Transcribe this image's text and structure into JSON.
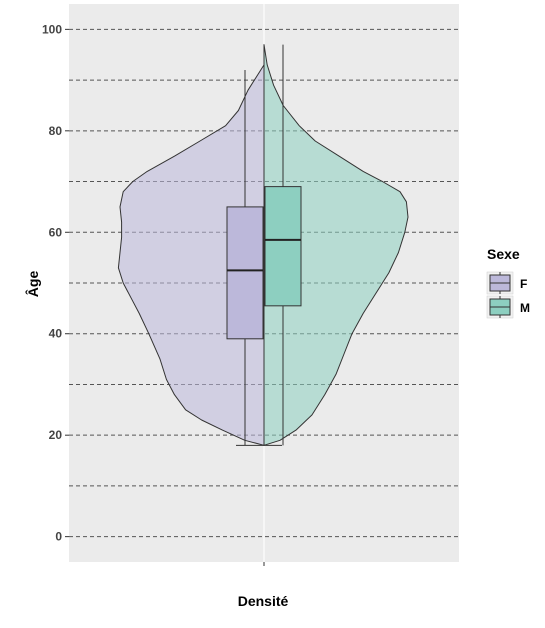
{
  "chart_data": {
    "type": "violin",
    "xlabel": "Densité",
    "ylabel": "Âge",
    "ylim": [
      -5,
      105
    ],
    "y_ticks": [
      0,
      20,
      40,
      60,
      80,
      100
    ],
    "y_minor_ticks": [
      10,
      30,
      50,
      70,
      90
    ],
    "grid": "horizontal dashed",
    "legend": {
      "title": "Sexe",
      "placement": "right"
    },
    "series": [
      {
        "name": "F",
        "side": "left",
        "color": "#bcb8da",
        "box": {
          "min": 18,
          "q1": 39,
          "median": 52.5,
          "q3": 65,
          "max": 92
        },
        "density": [
          [
            18,
            0.0
          ],
          [
            19,
            0.12
          ],
          [
            21,
            0.26
          ],
          [
            23,
            0.39
          ],
          [
            25,
            0.49
          ],
          [
            28,
            0.56
          ],
          [
            31,
            0.61
          ],
          [
            35,
            0.65
          ],
          [
            40,
            0.72
          ],
          [
            44,
            0.78
          ],
          [
            47,
            0.83
          ],
          [
            50,
            0.88
          ],
          [
            53,
            0.91
          ],
          [
            56,
            0.9
          ],
          [
            59,
            0.89
          ],
          [
            62,
            0.89
          ],
          [
            65,
            0.9
          ],
          [
            68,
            0.88
          ],
          [
            70,
            0.82
          ],
          [
            72,
            0.73
          ],
          [
            75,
            0.56
          ],
          [
            78,
            0.4
          ],
          [
            81,
            0.24
          ],
          [
            84,
            0.16
          ],
          [
            88,
            0.1
          ],
          [
            91,
            0.04
          ],
          [
            93,
            0.0
          ]
        ]
      },
      {
        "name": "M",
        "side": "right",
        "color": "#8dcfc0",
        "box": {
          "min": 18,
          "q1": 45.5,
          "median": 58.5,
          "q3": 69,
          "max": 97
        },
        "density": [
          [
            18,
            0.0
          ],
          [
            19,
            0.1
          ],
          [
            21,
            0.2
          ],
          [
            24,
            0.3
          ],
          [
            28,
            0.38
          ],
          [
            32,
            0.45
          ],
          [
            36,
            0.5
          ],
          [
            40,
            0.55
          ],
          [
            44,
            0.62
          ],
          [
            48,
            0.7
          ],
          [
            52,
            0.78
          ],
          [
            56,
            0.84
          ],
          [
            60,
            0.88
          ],
          [
            63,
            0.9
          ],
          [
            66,
            0.89
          ],
          [
            68,
            0.85
          ],
          [
            70,
            0.74
          ],
          [
            72,
            0.62
          ],
          [
            75,
            0.47
          ],
          [
            78,
            0.32
          ],
          [
            81,
            0.22
          ],
          [
            85,
            0.12
          ],
          [
            89,
            0.06
          ],
          [
            93,
            0.02
          ],
          [
            97,
            0.0
          ]
        ]
      }
    ]
  }
}
